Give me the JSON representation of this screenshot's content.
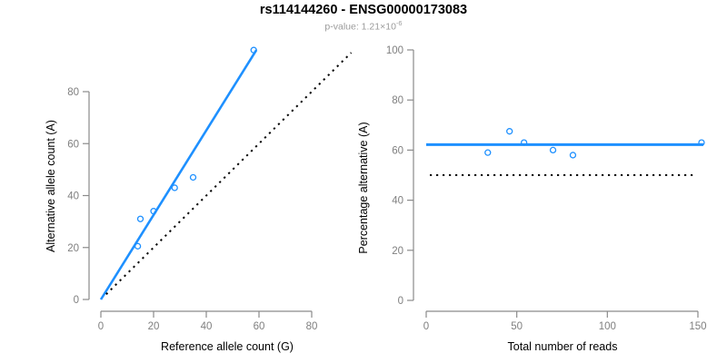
{
  "header": {
    "title": "rs114144260 - ENSG00000173083",
    "subtitle_text": "p-value: 1.21×10",
    "subtitle_exponent": "-6"
  },
  "colors": {
    "accent_blue": "#1E90FF",
    "axis_gray": "#8a8a8a",
    "tick_label_gray": "#7f7f7f",
    "text_black": "#000000",
    "subtitle_gray": "#9b9b9b",
    "line_black": "#000000",
    "background": "#ffffff"
  },
  "chart_data": [
    {
      "type": "scatter",
      "name": "allele-counts-plot",
      "title": "rs114144260 - ENSG00000173083",
      "subtitle": "p-value: 1.21×10^-6",
      "xlabel": "Reference allele count (G)",
      "ylabel": "Alternative allele count (A)",
      "xlim": [
        0,
        95
      ],
      "ylim": [
        0,
        97
      ],
      "xticks": [
        0,
        20,
        40,
        60,
        80
      ],
      "yticks": [
        0,
        20,
        40,
        60,
        80
      ],
      "grid": false,
      "legend": "none",
      "marker": "open-circle",
      "points": [
        [
          14,
          20.5
        ],
        [
          15,
          31
        ],
        [
          20,
          34
        ],
        [
          28,
          43
        ],
        [
          35,
          47
        ],
        [
          58,
          96
        ]
      ],
      "lines": [
        {
          "name": "regression-line",
          "x1": 0,
          "y1": 0,
          "x2": 59,
          "y2": 96,
          "style": "solid",
          "color_key": "accent_blue",
          "width": 2.6
        },
        {
          "name": "identity-line",
          "x1": 2,
          "y1": 2,
          "x2": 95,
          "y2": 95,
          "style": "dotted",
          "color_key": "line_black",
          "width": 2
        }
      ]
    },
    {
      "type": "scatter",
      "name": "percentage-vs-reads-plot",
      "title": "rs114144260 - ENSG00000173083",
      "subtitle": "p-value: 1.21×10^-6",
      "xlabel": "Total number of reads",
      "ylabel": "Percentage alternative (A)",
      "xlim": [
        0,
        153
      ],
      "ylim": [
        0,
        100
      ],
      "xticks": [
        0,
        50,
        100,
        150
      ],
      "yticks": [
        0,
        20,
        40,
        60,
        80,
        100
      ],
      "grid": false,
      "legend": "none",
      "marker": "open-circle",
      "points": [
        [
          34,
          59
        ],
        [
          46,
          67.5
        ],
        [
          54,
          63
        ],
        [
          70,
          60
        ],
        [
          81,
          58
        ],
        [
          152,
          63
        ]
      ],
      "lines": [
        {
          "name": "mean-line",
          "x1": 0,
          "y1": 62.2,
          "x2": 153,
          "y2": 62.2,
          "style": "solid",
          "color_key": "accent_blue",
          "width": 3
        },
        {
          "name": "null-line",
          "x1": 2,
          "y1": 50,
          "x2": 149,
          "y2": 50,
          "style": "dotted",
          "color_key": "line_black",
          "width": 2
        }
      ]
    }
  ]
}
